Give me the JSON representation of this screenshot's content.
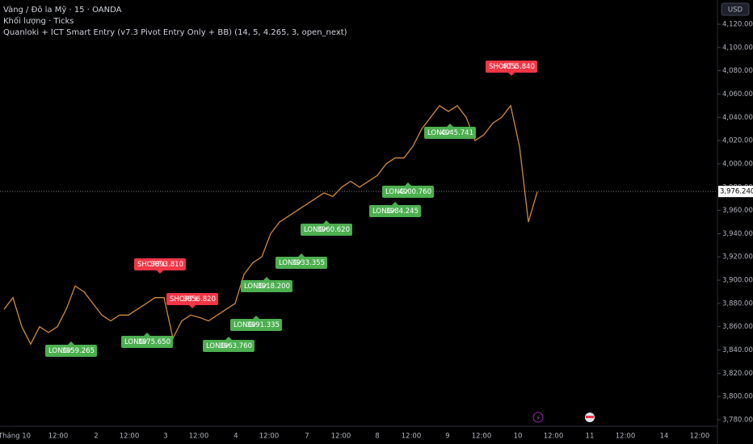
{
  "header": {
    "symbol": "Vàng / Đô la Mỹ · 15 · OANDA",
    "volume": "Khối lượng · Ticks",
    "indicator": "Quanloki + ICT Smart Entry (v7.3 Pivot Entry Only + BB) (14, 5, 4.265, 3, open_next)"
  },
  "currency": "USD",
  "price_axis": {
    "ticks": [
      {
        "value": 4120,
        "label": "4,120.000"
      },
      {
        "value": 4100,
        "label": "4,100.000"
      },
      {
        "value": 4080,
        "label": "4,080.000"
      },
      {
        "value": 4060,
        "label": "4,060.000"
      },
      {
        "value": 4040,
        "label": "4,040.000"
      },
      {
        "value": 4020,
        "label": "4,020.000"
      },
      {
        "value": 4000,
        "label": "4,000.000"
      },
      {
        "value": 3980,
        "label": "3,980.000"
      },
      {
        "value": 3960,
        "label": "3,960.000"
      },
      {
        "value": 3940,
        "label": "3,940.000"
      },
      {
        "value": 3920,
        "label": "3,920.000"
      },
      {
        "value": 3900,
        "label": "3,900.000"
      },
      {
        "value": 3880,
        "label": "3,880.000"
      },
      {
        "value": 3860,
        "label": "3,860.000"
      },
      {
        "value": 3840,
        "label": "3,840.000"
      },
      {
        "value": 3820,
        "label": "3,820.000"
      },
      {
        "value": 3800,
        "label": "3,800.000"
      },
      {
        "value": 3780,
        "label": "3,780.000"
      }
    ],
    "current": {
      "value": 3976.24,
      "label": "3,976.240"
    }
  },
  "time_axis": [
    "Tháng 10",
    "12:00",
    "2",
    "12:00",
    "3",
    "12:00",
    "4",
    "12:00",
    "7",
    "12:00",
    "8",
    "12:00",
    "9",
    "12:00",
    "10",
    "12:00",
    "11",
    "12:00",
    "14",
    "12:00"
  ],
  "closes": [
    3875,
    3885,
    3860,
    3845,
    3860,
    3855,
    3860,
    3875,
    3895,
    3890,
    3880,
    3870,
    3865,
    3870,
    3870,
    3875,
    3880,
    3885,
    3885,
    3850,
    3865,
    3870,
    3868,
    3865,
    3870,
    3875,
    3880,
    3905,
    3915,
    3920,
    3940,
    3950,
    3955,
    3960,
    3965,
    3970,
    3975,
    3972,
    3980,
    3985,
    3980,
    3985,
    3990,
    4000,
    4005,
    4005,
    4015,
    4030,
    4040,
    4050,
    4045,
    4050,
    4040,
    4020,
    4025,
    4035,
    4040,
    4050,
    4015,
    3950,
    3976
  ],
  "signals": [
    {
      "kind": "LONG",
      "price": "3859.265"
    },
    {
      "kind": "LONG",
      "price": "3875.650"
    },
    {
      "kind": "SHORT",
      "price": "3893.810"
    },
    {
      "kind": "SHORT",
      "price": "3856.820"
    },
    {
      "kind": "LONG",
      "price": "3863.760"
    },
    {
      "kind": "LONG",
      "price": "3891.335"
    },
    {
      "kind": "LONG",
      "price": "3918.200"
    },
    {
      "kind": "LONG",
      "price": "3933.355"
    },
    {
      "kind": "LONG",
      "price": "3960.620"
    },
    {
      "kind": "LONG",
      "price": "3984.245"
    },
    {
      "kind": "LONG",
      "price": "4000.760"
    },
    {
      "kind": "SHORT",
      "price": "4055.840"
    },
    {
      "kind": "LONG",
      "price": "4045.741"
    }
  ]
}
